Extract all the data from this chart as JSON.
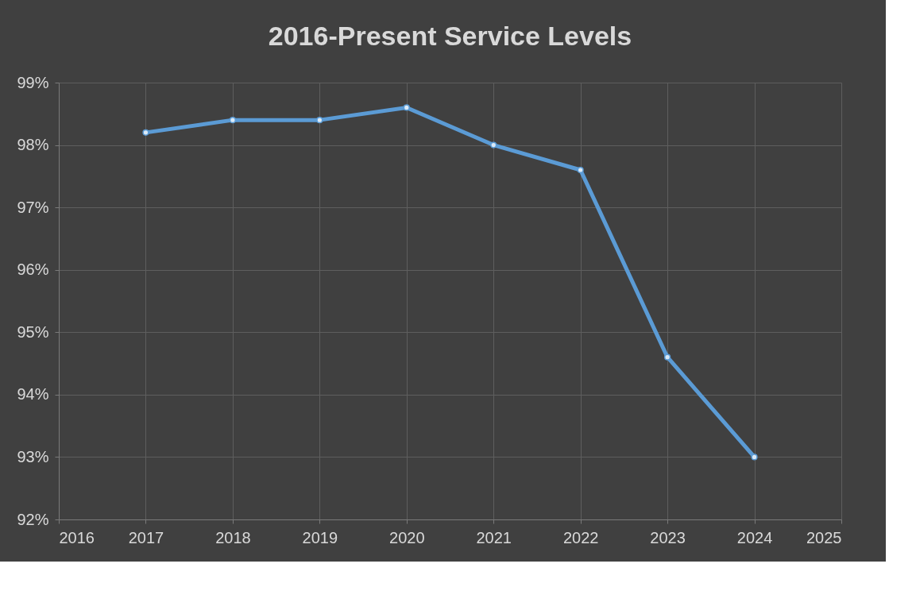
{
  "chart_data": {
    "type": "line",
    "title": "2016-Present Service Levels",
    "x": [
      2017,
      2018,
      2019,
      2020,
      2021,
      2022,
      2023,
      2024
    ],
    "series": [
      {
        "color": "#5b9bd5",
        "values": [
          98.2,
          98.4,
          98.4,
          98.6,
          98.0,
          97.6,
          94.6,
          93.0
        ]
      }
    ],
    "xlim": [
      2016,
      2025
    ],
    "xticks": [
      2016,
      2017,
      2018,
      2019,
      2020,
      2021,
      2022,
      2023,
      2024,
      2025
    ],
    "ylim": [
      92,
      99
    ],
    "yticks": [
      {
        "value": 92,
        "label": "92%"
      },
      {
        "value": 93,
        "label": "93%"
      },
      {
        "value": 94,
        "label": "94%"
      },
      {
        "value": 95,
        "label": "95%"
      },
      {
        "value": 96,
        "label": "96%"
      },
      {
        "value": 97,
        "label": "97%"
      },
      {
        "value": 98,
        "label": "98%"
      },
      {
        "value": 99,
        "label": "99%"
      }
    ],
    "grid": true,
    "marker": "circle",
    "line_style": "solid"
  }
}
